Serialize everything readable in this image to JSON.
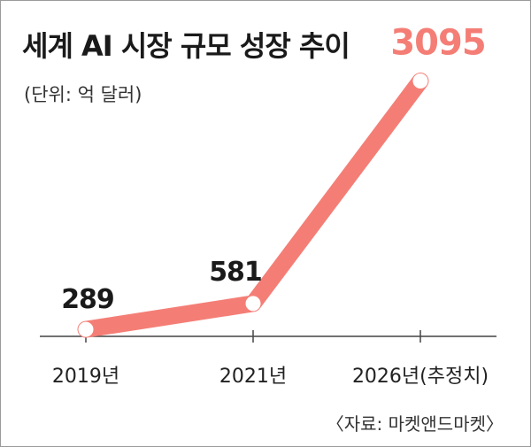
{
  "chart_data": {
    "type": "line",
    "title": "세계 AI 시장 규모 성장 추이",
    "subtitle": "(단위: 억 달러)",
    "source": "〈자료: 마켓앤드마켓〉",
    "categories": [
      "2019년",
      "2021년",
      "2026년(추정치)"
    ],
    "series": [
      {
        "values": [
          289,
          581,
          3095
        ]
      }
    ],
    "data_labels": [
      "289",
      "581",
      "3095"
    ],
    "ylim": [
      0,
      3400
    ],
    "grid": false,
    "colors": {
      "line": "#f47e76",
      "highlight_label": "#f47e76",
      "label": "#1a1a1a",
      "axis": "#444444"
    }
  }
}
